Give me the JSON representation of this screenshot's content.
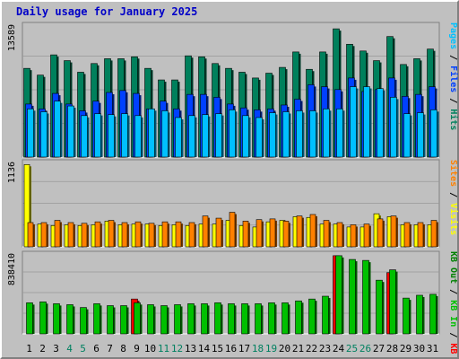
{
  "title": "Daily usage for January 2025",
  "colors": {
    "hits": "#00805c",
    "files": "#0040ff",
    "pages": "#00c0ff",
    "visits": "#ffff00",
    "sites": "#ff8000",
    "kb_in": "#00c000",
    "kb_out": "#008000",
    "kb_f": "#ff0000",
    "plot_bg": "#c0c0c0",
    "weekend": "#008060",
    "axis_text": "#000000"
  },
  "chart_data": [
    {
      "type": "bar",
      "ylabel_max": "13589",
      "legend": [
        {
          "label": "Hits",
          "color": "#00805c"
        },
        {
          "label": "Files",
          "color": "#0040ff"
        },
        {
          "label": "Pages",
          "color": "#00c0ff"
        }
      ],
      "ylim": [
        0,
        13589
      ],
      "series": [
        {
          "name": "Hits",
          "values": [
            9200,
            8500,
            10600,
            10000,
            8800,
            9700,
            10200,
            10200,
            10400,
            9200,
            8000,
            8000,
            10500,
            10400,
            9700,
            9200,
            8800,
            8200,
            8700,
            9300,
            10900,
            9100,
            10900,
            13300,
            11700,
            11000,
            10000,
            12500,
            9600,
            10200,
            11200
          ]
        },
        {
          "name": "Files",
          "values": [
            5500,
            5000,
            6600,
            5500,
            4800,
            5800,
            6700,
            6900,
            6600,
            5000,
            5800,
            5000,
            6500,
            6500,
            6200,
            5500,
            5100,
            4900,
            5000,
            5400,
            6000,
            7500,
            7300,
            7000,
            8200,
            6800,
            7000,
            8200,
            6300,
            6500,
            7300
          ]
        },
        {
          "name": "Pages",
          "values": [
            5000,
            4700,
            5800,
            5300,
            4300,
            4500,
            4400,
            4500,
            4300,
            5000,
            4800,
            4100,
            4300,
            4400,
            4500,
            4900,
            4300,
            4100,
            4600,
            4700,
            4800,
            4800,
            5000,
            5000,
            7300,
            7300,
            7100,
            6200,
            4500,
            4600,
            4900
          ]
        }
      ]
    },
    {
      "type": "bar",
      "ylabel_max": "1136",
      "legend": [
        {
          "label": "Visits",
          "color": "#ffff00"
        },
        {
          "label": "Sites",
          "color": "#ff8000"
        }
      ],
      "ylim": [
        0,
        1136
      ],
      "series": [
        {
          "name": "Visits",
          "values": [
            1120,
            310,
            290,
            300,
            290,
            300,
            350,
            300,
            310,
            310,
            290,
            300,
            290,
            310,
            310,
            360,
            290,
            270,
            340,
            360,
            410,
            400,
            310,
            310,
            270,
            270,
            450,
            410,
            300,
            300,
            300
          ]
        },
        {
          "name": "Sites",
          "values": [
            330,
            330,
            360,
            330,
            320,
            340,
            360,
            330,
            340,
            320,
            340,
            340,
            330,
            420,
            390,
            470,
            350,
            370,
            380,
            350,
            420,
            440,
            360,
            330,
            300,
            310,
            380,
            420,
            330,
            330,
            360
          ]
        }
      ]
    },
    {
      "type": "bar",
      "ylabel_max": "838410",
      "legend": [
        {
          "label": "KB F",
          "color": "#ff0000"
        },
        {
          "label": "KB In",
          "color": "#00c000"
        },
        {
          "label": "KB Out",
          "color": "#008000"
        }
      ],
      "ylim": [
        0,
        838410
      ],
      "series": [
        {
          "name": "KB F",
          "values": [
            0,
            0,
            0,
            0,
            0,
            0,
            0,
            0,
            370000,
            0,
            0,
            0,
            0,
            0,
            0,
            0,
            0,
            0,
            0,
            0,
            0,
            0,
            0,
            830000,
            0,
            0,
            0,
            650000,
            0,
            0,
            0
          ]
        },
        {
          "name": "KB In",
          "values": [
            330000,
            340000,
            320000,
            310000,
            280000,
            320000,
            300000,
            300000,
            330000,
            310000,
            300000,
            310000,
            320000,
            320000,
            330000,
            320000,
            320000,
            320000,
            330000,
            330000,
            350000,
            370000,
            400000,
            830000,
            790000,
            780000,
            570000,
            680000,
            380000,
            410000,
            420000
          ]
        }
      ]
    }
  ],
  "days": [
    "1",
    "2",
    "3",
    "4",
    "5",
    "6",
    "7",
    "8",
    "9",
    "10",
    "11",
    "12",
    "13",
    "14",
    "15",
    "16",
    "17",
    "18",
    "19",
    "20",
    "21",
    "22",
    "23",
    "24",
    "25",
    "26",
    "27",
    "28",
    "29",
    "30",
    "31"
  ],
  "weekend_days": [
    4,
    5,
    11,
    12,
    18,
    19,
    25,
    26
  ]
}
